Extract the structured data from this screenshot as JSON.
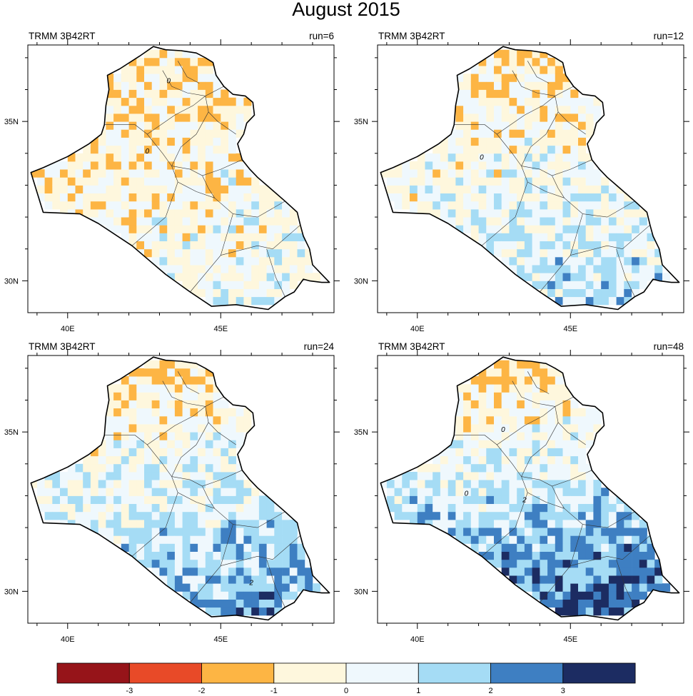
{
  "figure": {
    "title": "August 2015"
  },
  "panels": [
    {
      "left_label": "TRMM 3B42RT",
      "right_label": "run=6",
      "contours": [
        "0",
        "0"
      ]
    },
    {
      "left_label": "TRMM 3B42RT",
      "right_label": "run=12",
      "contours": [
        "0"
      ]
    },
    {
      "left_label": "TRMM 3B42RT",
      "right_label": "run=24",
      "contours": [
        "2"
      ]
    },
    {
      "left_label": "TRMM 3B42RT",
      "right_label": "run=48",
      "contours": [
        "0",
        "0",
        "2"
      ]
    }
  ],
  "axes": {
    "lon_ticks": [
      {
        "value": 40,
        "label": "40E"
      },
      {
        "value": 45,
        "label": "45E"
      }
    ],
    "lat_ticks": [
      {
        "value": 35,
        "label": "35N"
      },
      {
        "value": 30,
        "label": "30N"
      }
    ],
    "lon_range": [
      38.7,
      48.7
    ],
    "lat_range": [
      29.0,
      37.4
    ]
  },
  "colorbar": {
    "tick_labels": [
      "-3",
      "-2",
      "-1",
      "0",
      "1",
      "2",
      "3"
    ],
    "colors": [
      "#961419",
      "#e84a28",
      "#fdb544",
      "#fef7dd",
      "#eff8fd",
      "#a5dcf5",
      "#3e7fc2",
      "#1c2c62"
    ]
  }
}
